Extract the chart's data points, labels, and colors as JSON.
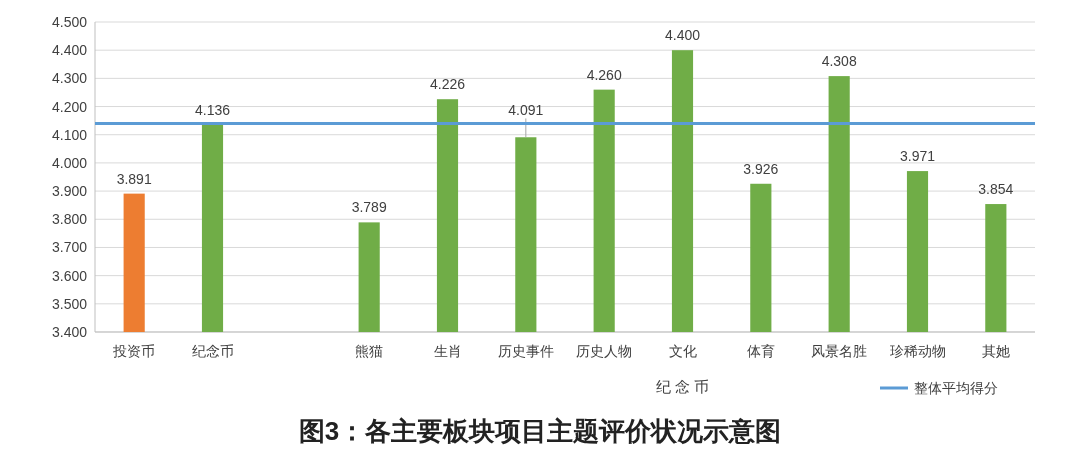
{
  "chart_data": {
    "type": "bar",
    "title": "图3：各主要板块项目主题评价状况示意图",
    "categories": [
      "投资币",
      "纪念币",
      null,
      "熊猫",
      "生肖",
      "历史事件",
      "历史人物",
      "文化",
      "体育",
      "风景名胜",
      "珍稀动物",
      "其她"
    ],
    "values": [
      3.891,
      4.136,
      null,
      3.789,
      4.226,
      4.091,
      4.26,
      4.4,
      3.926,
      4.308,
      3.971,
      3.854
    ],
    "value_labels": [
      "3.891",
      "4.136",
      null,
      "3.789",
      "4.226",
      "4.091",
      "4.260",
      "4.400",
      "3.926",
      "4.308",
      "3.971",
      "3.854"
    ],
    "colors": [
      "#ed7d31",
      "#70ad47",
      null,
      "#70ad47",
      "#70ad47",
      "#70ad47",
      "#70ad47",
      "#70ad47",
      "#70ad47",
      "#70ad47",
      "#70ad47",
      "#70ad47"
    ],
    "ylim": [
      3.4,
      4.5
    ],
    "yticks": [
      {
        "value": 3.4,
        "label": "3.400"
      },
      {
        "value": 3.5,
        "label": "3.500"
      },
      {
        "value": 3.6,
        "label": "3.600"
      },
      {
        "value": 3.7,
        "label": "3.700"
      },
      {
        "value": 3.8,
        "label": "3.800"
      },
      {
        "value": 3.9,
        "label": "3.900"
      },
      {
        "value": 4.0,
        "label": "4.000"
      },
      {
        "value": 4.1,
        "label": "4.100"
      },
      {
        "value": 4.2,
        "label": "4.200"
      },
      {
        "value": 4.3,
        "label": "4.300"
      },
      {
        "value": 4.4,
        "label": "4.400"
      },
      {
        "value": 4.5,
        "label": "4.500"
      }
    ],
    "grid": "y",
    "ref_lines": [
      {
        "axis": "y",
        "value": 4.14,
        "label": "整体平均得分",
        "color": "#5b9bd5"
      }
    ],
    "legend": "bottom right",
    "annotations": [
      "纪 念 币"
    ]
  }
}
